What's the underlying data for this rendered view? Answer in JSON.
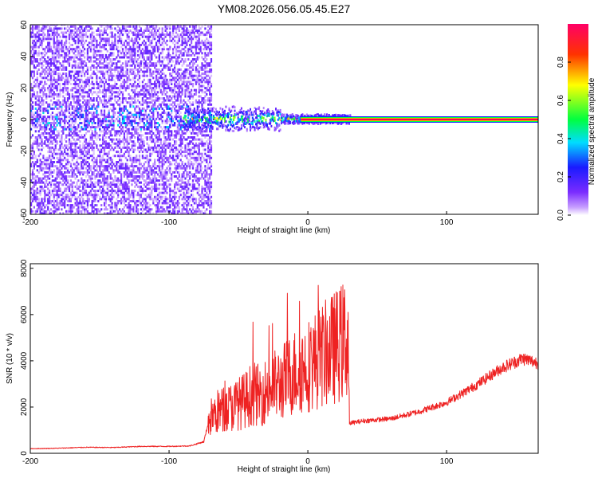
{
  "title": "YM08.2026.056.05.45.E27",
  "colors": {
    "snr_line": "#ee2222",
    "spectral_center_line": "#e00055",
    "scatter_low": "#b99cf0",
    "scatter_high": "#6a20e8"
  },
  "chart_data": [
    {
      "type": "heatmap",
      "xlabel": "Height of straight line (km)",
      "ylabel": "Frequency (Hz)",
      "xlim": [
        -200,
        166
      ],
      "ylim": [
        -60,
        60
      ],
      "x_ticks": [
        -200,
        -100,
        0,
        100
      ],
      "y_ticks": [
        -60,
        -40,
        -20,
        0,
        20,
        40,
        60
      ],
      "grid": false,
      "colorbar": {
        "label": "Normalized spectral amplitude",
        "ticks": [
          0.0,
          0.2,
          0.4,
          0.6,
          0.8
        ],
        "range": [
          0,
          1
        ],
        "colormap": [
          "#ffffff",
          "#c8a0ff",
          "#7a2cff",
          "#1a1aff",
          "#00ddff",
          "#00ff40",
          "#ffff00",
          "#ff3300",
          "#ff0066"
        ]
      },
      "regions": [
        {
          "name": "broadband noise",
          "x_range": [
            -200,
            -72
          ],
          "freq_range": [
            -60,
            60
          ],
          "amplitude": 0.1
        },
        {
          "name": "central band",
          "x_range": [
            -90,
            166
          ],
          "freq_center": 0,
          "amplitude_peak": 0.9
        }
      ]
    },
    {
      "type": "line",
      "xlabel": "Height of straight line (km)",
      "ylabel": "SNR (10 * v/v)",
      "xlim": [
        -200,
        166
      ],
      "ylim": [
        0,
        8200
      ],
      "x_ticks": [
        -200,
        -100,
        0,
        100
      ],
      "y_ticks": [
        0,
        2000,
        4000,
        6000,
        8000
      ],
      "grid": false,
      "series": [
        {
          "x": [
            -200,
            -180,
            -160,
            -140,
            -120,
            -100,
            -85,
            -75,
            -71,
            -65,
            -55,
            -45,
            -40,
            -35,
            -30,
            -25,
            -20,
            -10,
            0,
            10,
            20,
            29,
            30,
            40,
            60,
            80,
            100,
            120,
            140,
            155,
            166
          ],
          "y": [
            200,
            220,
            260,
            250,
            300,
            300,
            320,
            500,
            1500,
            1800,
            2000,
            2300,
            2600,
            2500,
            2700,
            2900,
            3000,
            3500,
            3800,
            4200,
            4600,
            5000,
            1300,
            1400,
            1500,
            1800,
            2200,
            2900,
            3700,
            4100,
            3900
          ]
        }
      ]
    }
  ]
}
